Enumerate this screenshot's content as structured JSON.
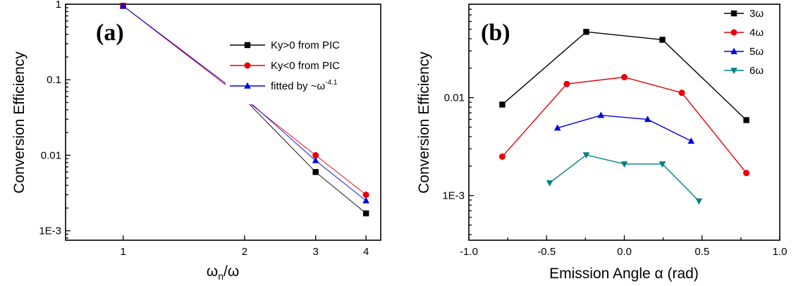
{
  "chart_data": [
    {
      "type": "line",
      "panel_label": "(a)",
      "xlabel": "ω_n/ω",
      "xlabel_main": "ω",
      "xlabel_sub": "n",
      "xlabel_rest": "/ω",
      "ylabel": "Conversion Efficiency",
      "x_scale": "log",
      "y_scale": "log",
      "xlim": [
        0.72,
        4.35
      ],
      "ylim": [
        0.00075,
        1.0
      ],
      "x_ticks": [
        1,
        2,
        3,
        4
      ],
      "x_tick_labels": [
        "1",
        "2",
        "3",
        "4"
      ],
      "y_ticks": [
        1,
        0.1,
        0.01,
        0.001
      ],
      "y_tick_labels": [
        "1",
        "0.1",
        "0.01",
        "1E-3"
      ],
      "legend_position": "top-right",
      "series": [
        {
          "name": "Ky>0 from PIC",
          "color": "#000000",
          "marker": "square",
          "x": [
            1,
            2,
            3,
            4
          ],
          "y": [
            0.95,
            0.055,
            0.006,
            0.0017
          ]
        },
        {
          "name": "Ky<0 from PIC",
          "color": "#e8000b",
          "marker": "circle",
          "x": [
            1,
            2,
            3,
            4
          ],
          "y": [
            0.95,
            0.055,
            0.01,
            0.003
          ]
        },
        {
          "name": "fitted by ~ω",
          "name_sup": "-4.1",
          "color": "#0000e0",
          "marker": "triangle-up",
          "x": [
            1,
            2,
            3,
            4
          ],
          "y": [
            0.95,
            0.058,
            0.0085,
            0.0025
          ]
        }
      ]
    },
    {
      "type": "line",
      "panel_label": "(b)",
      "xlabel": "Emission Angle α (rad)",
      "ylabel": "Conversion Efficiency",
      "x_scale": "linear",
      "y_scale": "log",
      "xlim": [
        -1.0,
        1.0
      ],
      "ylim": [
        0.00035,
        0.09
      ],
      "x_ticks": [
        -1.0,
        -0.5,
        0.0,
        0.5,
        1.0
      ],
      "x_tick_labels": [
        "-1.0",
        "-0.5",
        "0.0",
        "0.5",
        "1.0"
      ],
      "y_ticks": [
        0.01,
        0.001
      ],
      "y_tick_labels": [
        "0.01",
        "1E-3"
      ],
      "legend_position": "top-right",
      "series": [
        {
          "name": "3ω",
          "color": "#000000",
          "marker": "square",
          "x": [
            -0.785,
            -0.245,
            0.245,
            0.785
          ],
          "y": [
            0.0085,
            0.047,
            0.039,
            0.0059
          ]
        },
        {
          "name": "4ω",
          "color": "#e8000b",
          "marker": "circle",
          "x": [
            -0.785,
            -0.37,
            0.0,
            0.37,
            0.785
          ],
          "y": [
            0.0025,
            0.0138,
            0.0162,
            0.0112,
            0.0017
          ]
        },
        {
          "name": "5ω",
          "color": "#0000e0",
          "marker": "triangle-up",
          "x": [
            -0.43,
            -0.15,
            0.15,
            0.43
          ],
          "y": [
            0.0049,
            0.0066,
            0.006,
            0.0036
          ]
        },
        {
          "name": "6ω",
          "color": "#008080",
          "marker": "triangle-down",
          "x": [
            -0.48,
            -0.245,
            0.0,
            0.245,
            0.48
          ],
          "y": [
            0.00135,
            0.0026,
            0.0021,
            0.0021,
            0.00088
          ]
        }
      ]
    }
  ]
}
